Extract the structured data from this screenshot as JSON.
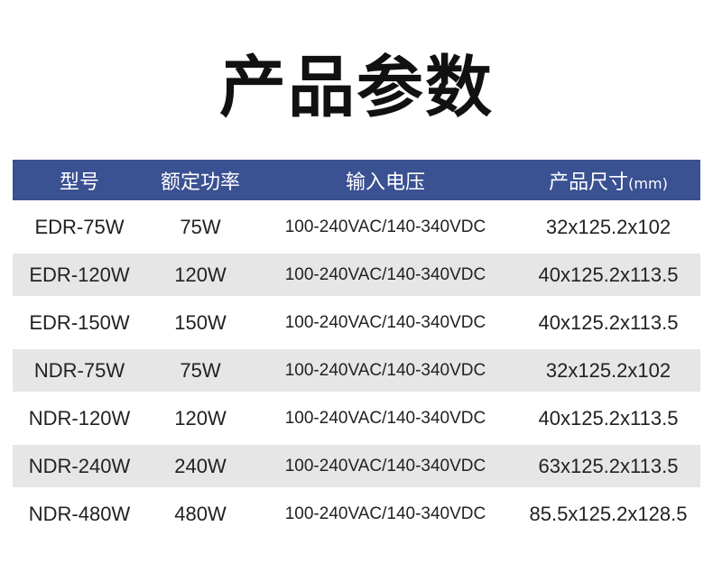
{
  "title": "产品参数",
  "colors": {
    "header_bg": "#3a5192",
    "alt_row_bg": "#e6e6e6"
  },
  "table": {
    "headers": [
      "型号",
      "额定功率",
      "输入电压",
      "产品尺寸"
    ],
    "size_unit": "(mm)",
    "rows": [
      [
        "EDR-75W",
        "75W",
        "100-240VAC/140-340VDC",
        "32x125.2x102"
      ],
      [
        "EDR-120W",
        "120W",
        "100-240VAC/140-340VDC",
        "40x125.2x113.5"
      ],
      [
        "EDR-150W",
        "150W",
        "100-240VAC/140-340VDC",
        "40x125.2x113.5"
      ],
      [
        "NDR-75W",
        "75W",
        "100-240VAC/140-340VDC",
        "32x125.2x102"
      ],
      [
        "NDR-120W",
        "120W",
        "100-240VAC/140-340VDC",
        "40x125.2x113.5"
      ],
      [
        "NDR-240W",
        "240W",
        "100-240VAC/140-340VDC",
        "63x125.2x113.5"
      ],
      [
        "NDR-480W",
        "480W",
        "100-240VAC/140-340VDC",
        "85.5x125.2x128.5"
      ]
    ]
  }
}
